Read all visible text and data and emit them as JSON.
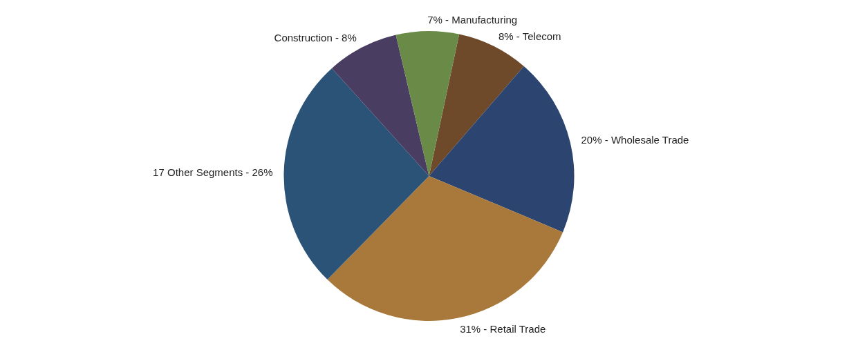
{
  "chart_data": {
    "type": "pie",
    "categories": [
      "Telecom",
      "Wholesale Trade",
      "Retail Trade",
      "17 Other Segments",
      "Construction",
      "Manufacturing"
    ],
    "values": [
      8,
      20,
      31,
      26,
      8,
      7
    ],
    "value_labels": [
      "8%",
      "20%",
      "31%",
      "26%",
      "8%",
      "7%"
    ],
    "colors": [
      "#6e4a2a",
      "#2c4470",
      "#a8793a",
      "#2b5378",
      "#4a3d62",
      "#6a8a48"
    ]
  }
}
